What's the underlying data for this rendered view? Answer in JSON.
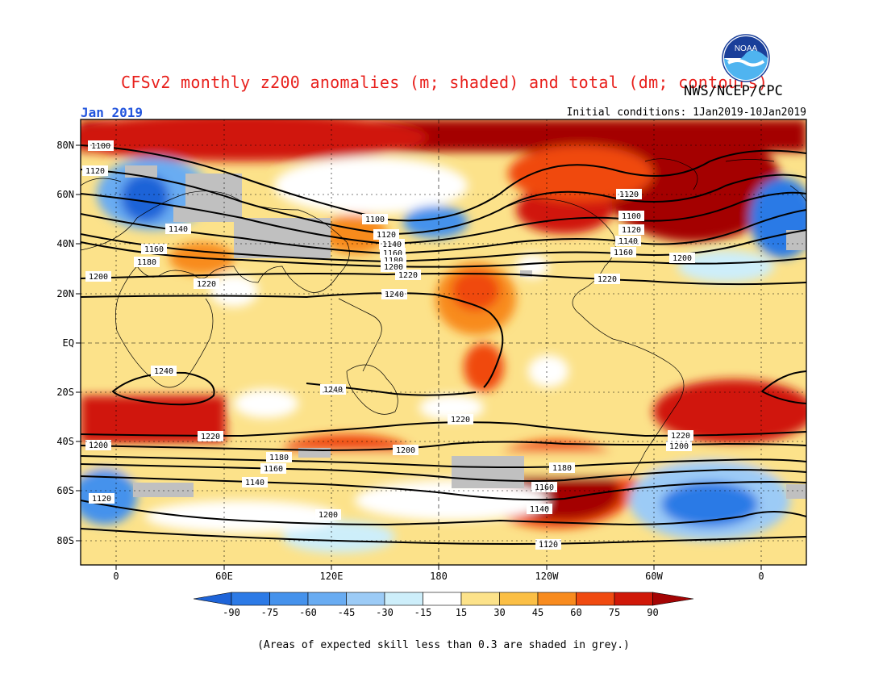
{
  "header": {
    "title": "CFSv2 monthly z200 anomalies (m; shaded) and total (dm; contours)",
    "agency": "NWS/NCEP/CPC",
    "logo_text": "NOAA",
    "month": "Jan 2019",
    "initial_conditions": "Initial conditions: 1Jan2019-10Jan2019"
  },
  "axes": {
    "lat_labels": [
      "80N",
      "60N",
      "40N",
      "20N",
      "EQ",
      "20S",
      "40S",
      "60S",
      "80S"
    ],
    "lon_labels": [
      "0",
      "60E",
      "120E",
      "180",
      "120W",
      "60W",
      "0"
    ]
  },
  "colorbar": {
    "ticks": [
      "-90",
      "-75",
      "-60",
      "-45",
      "-30",
      "-15",
      "15",
      "30",
      "45",
      "60",
      "75",
      "90"
    ],
    "colors": [
      "#1e64d8",
      "#2c7ae6",
      "#4592ec",
      "#69acf2",
      "#9ccbf6",
      "#cdeefa",
      "#ffffff",
      "#fce28a",
      "#fbbf45",
      "#f88b1e",
      "#f04a10",
      "#d01808",
      "#a40404"
    ]
  },
  "contour_labels": [
    "1100",
    "1120",
    "1140",
    "1160",
    "1180",
    "1200",
    "1220",
    "1240",
    "1100",
    "1120",
    "1140",
    "1160",
    "1180",
    "1200",
    "1220",
    "1240",
    "1220",
    "1200",
    "1180",
    "1160",
    "1140",
    "1120",
    "1200",
    "1180",
    "1160",
    "1140",
    "1120",
    "1220",
    "1200",
    "1120",
    "1100",
    "1120",
    "1140",
    "1160",
    "1200",
    "1220",
    "1240",
    "1220",
    "1200"
  ],
  "footnote": "(Areas of expected skill less than 0.3 are shaded in grey.)"
}
